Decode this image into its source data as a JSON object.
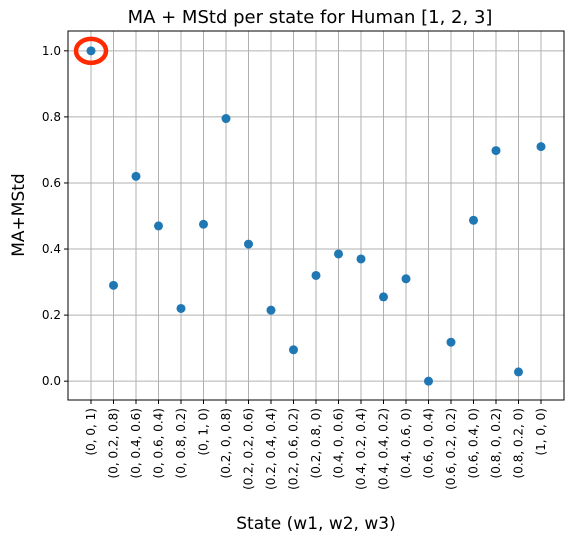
{
  "chart_data": {
    "type": "scatter",
    "title": "MA + MStd per state for Human [1, 2, 3]",
    "xlabel": "State (w1, w2, w3)",
    "ylabel": "MA+MStd",
    "categories": [
      "(0, 0, 1)",
      "(0, 0.2, 0.8)",
      "(0, 0.4, 0.6)",
      "(0, 0.6, 0.4)",
      "(0, 0.8, 0.2)",
      "(0, 1, 0)",
      "(0.2, 0, 0.8)",
      "(0.2, 0.2, 0.6)",
      "(0.2, 0.4, 0.4)",
      "(0.2, 0.6, 0.2)",
      "(0.2, 0.8, 0)",
      "(0.4, 0, 0.6)",
      "(0.4, 0.2, 0.4)",
      "(0.4, 0.4, 0.2)",
      "(0.4, 0.6, 0)",
      "(0.6, 0, 0.4)",
      "(0.6, 0.2, 0.2)",
      "(0.6, 0.4, 0)",
      "(0.8, 0, 0.2)",
      "(0.8, 0.2, 0)",
      "(1, 0, 0)"
    ],
    "values": [
      1.0,
      0.29,
      0.62,
      0.47,
      0.22,
      0.475,
      0.795,
      0.415,
      0.215,
      0.095,
      0.32,
      0.385,
      0.37,
      0.255,
      0.31,
      0.0,
      0.118,
      0.487,
      0.698,
      0.028,
      0.71
    ],
    "ylim": [
      -0.057,
      1.06
    ],
    "yticks": [
      0.0,
      0.2,
      0.4,
      0.6,
      0.8,
      1.0
    ],
    "ytick_labels": [
      "0.0",
      "0.2",
      "0.4",
      "0.6",
      "0.8",
      "1.0"
    ],
    "grid": true,
    "highlight_index": 0,
    "colors": {
      "marker": "#1f77b4",
      "highlight": "#ff2a00",
      "grid": "#b0b0b0",
      "axis": "#000000"
    }
  }
}
